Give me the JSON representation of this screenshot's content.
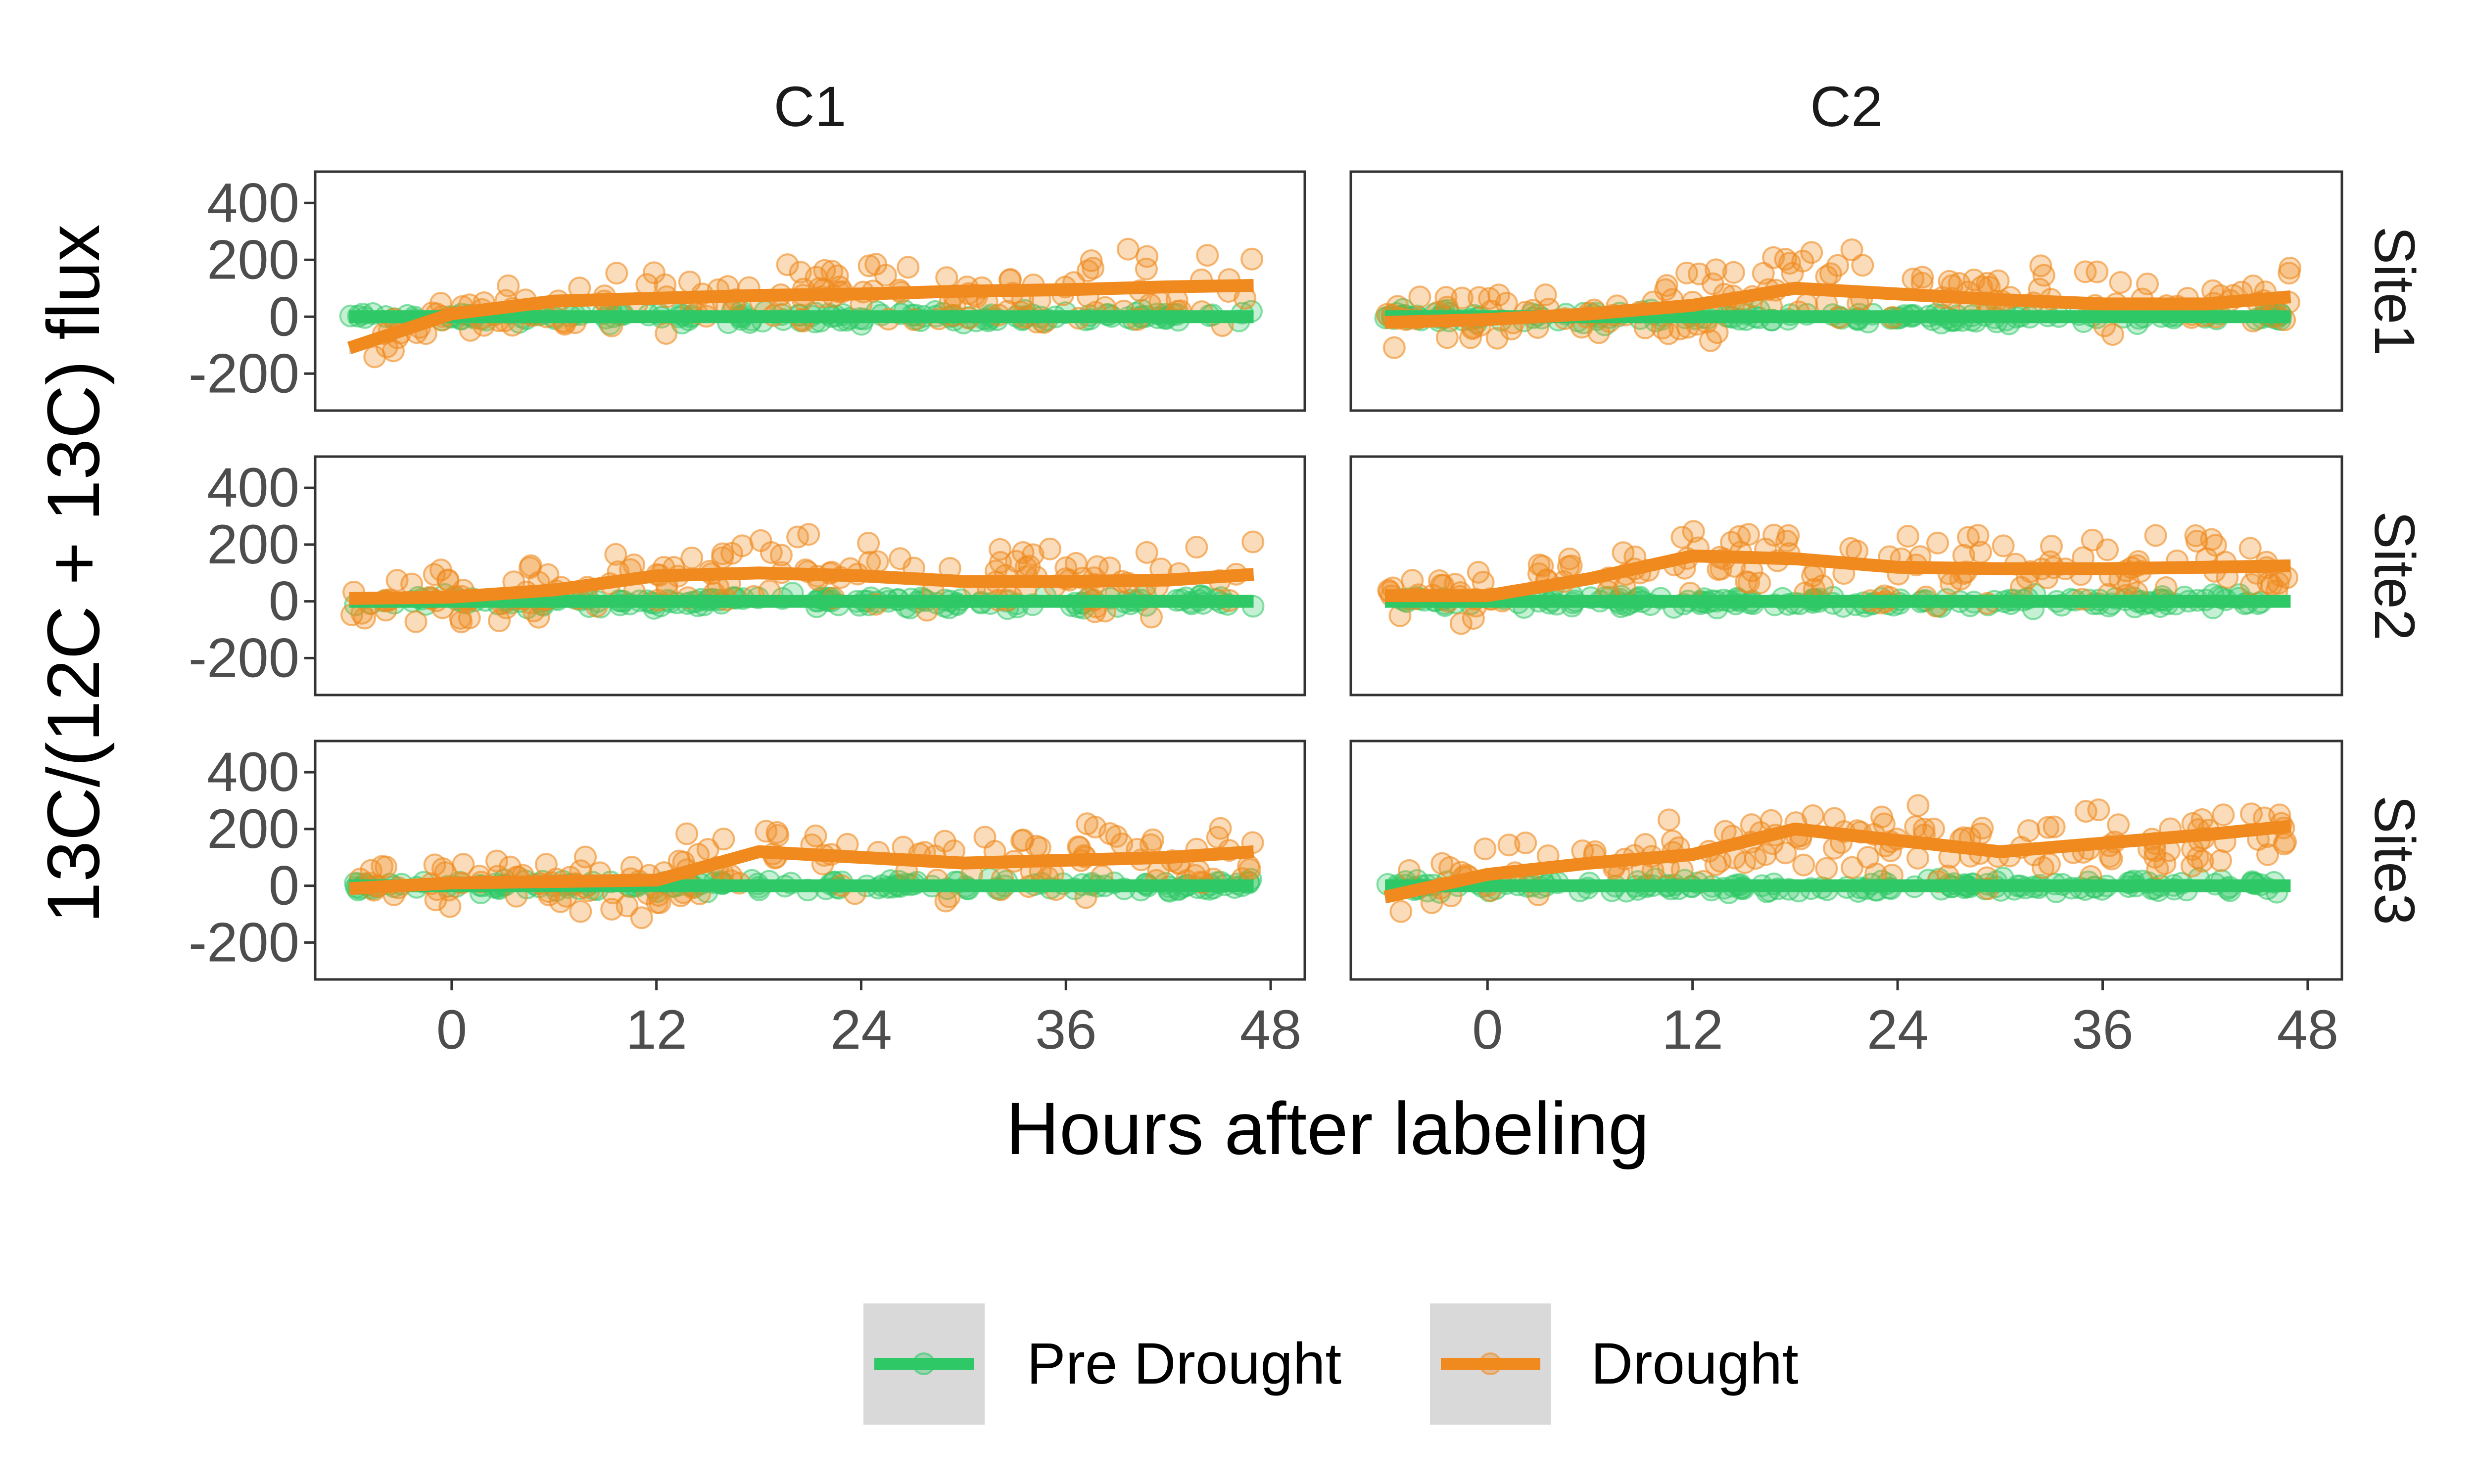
{
  "chart_data": {
    "type": "scatter",
    "xlabel": "Hours after labeling",
    "ylabel": "13C/(12C + 13C) flux",
    "xlim": [
      -8,
      50
    ],
    "ylim": [
      -330,
      510
    ],
    "x_ticks": [
      0,
      12,
      24,
      36,
      48
    ],
    "y_ticks": [
      400,
      200,
      0,
      -200
    ],
    "grid": false,
    "legend_position": "bottom",
    "facet_columns": [
      "C1",
      "C2"
    ],
    "facet_rows": [
      "Site1",
      "Site2",
      "Site3"
    ],
    "series": [
      {
        "name": "Pre Drought",
        "color": "#2ec866"
      },
      {
        "name": "Drought",
        "color": "#f08a1e"
      }
    ],
    "smooth_x": [
      -6,
      0,
      6,
      12,
      18,
      24,
      30,
      36,
      42,
      47
    ],
    "panels": [
      {
        "column": "C1",
        "row": "Site1",
        "drought_smooth": [
          -110,
          10,
          55,
          65,
          75,
          80,
          90,
          95,
          105,
          110
        ],
        "pre_drought_smooth": [
          0,
          0,
          0,
          0,
          0,
          0,
          0,
          0,
          0,
          0
        ]
      },
      {
        "column": "C2",
        "row": "Site1",
        "drought_smooth": [
          -20,
          -10,
          10,
          40,
          100,
          80,
          60,
          45,
          45,
          70
        ],
        "pre_drought_smooth": [
          0,
          0,
          0,
          0,
          0,
          0,
          0,
          0,
          0,
          0
        ]
      },
      {
        "column": "C1",
        "row": "Site2",
        "drought_smooth": [
          10,
          15,
          40,
          90,
          100,
          90,
          70,
          70,
          75,
          95
        ],
        "pre_drought_smooth": [
          0,
          0,
          0,
          0,
          0,
          0,
          0,
          0,
          0,
          0
        ]
      },
      {
        "column": "C2",
        "row": "Site2",
        "drought_smooth": [
          20,
          20,
          80,
          160,
          150,
          120,
          115,
          115,
          120,
          125
        ],
        "pre_drought_smooth": [
          0,
          0,
          0,
          0,
          0,
          0,
          0,
          0,
          0,
          0
        ]
      },
      {
        "column": "C1",
        "row": "Site3",
        "drought_smooth": [
          -10,
          10,
          15,
          20,
          120,
          100,
          80,
          90,
          100,
          120
        ],
        "pre_drought_smooth": [
          0,
          0,
          0,
          0,
          0,
          0,
          0,
          0,
          0,
          0
        ]
      },
      {
        "column": "C2",
        "row": "Site3",
        "drought_smooth": [
          -40,
          40,
          80,
          110,
          200,
          160,
          120,
          150,
          180,
          210
        ],
        "pre_drought_smooth": [
          0,
          0,
          0,
          0,
          0,
          0,
          0,
          0,
          0,
          0
        ]
      }
    ]
  }
}
